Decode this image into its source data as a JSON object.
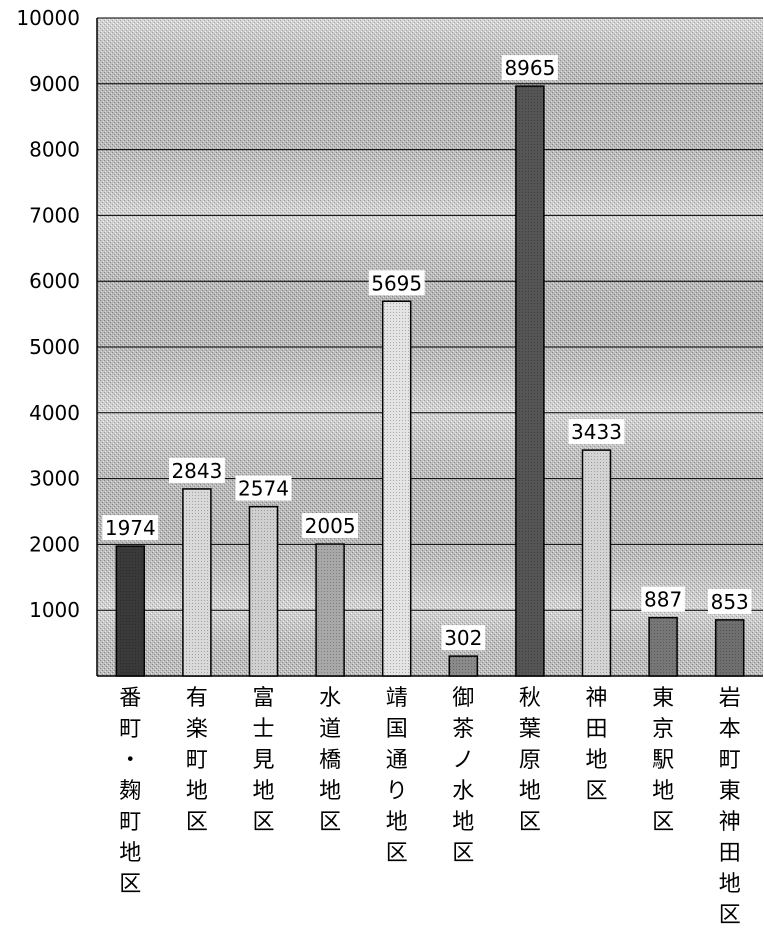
{
  "chart_data": {
    "type": "bar",
    "categories": [
      "番町・麹町地区",
      "有楽町地区",
      "富士見地区",
      "水道橋地区",
      "靖国通り地区",
      "御茶ノ水地区",
      "秋葉原地区",
      "神田地区",
      "東京駅地区",
      "岩本町東神田地区"
    ],
    "category_lines": [
      [
        "番",
        "町",
        "・",
        "麹",
        "町",
        "地",
        "区"
      ],
      [
        "有",
        "楽",
        "町",
        "地",
        "区"
      ],
      [
        "富",
        "士",
        "見",
        "地",
        "区"
      ],
      [
        "水",
        "道",
        "橋",
        "地",
        "区"
      ],
      [
        "靖",
        "国",
        "通",
        "り",
        "地",
        "区"
      ],
      [
        "御",
        "茶",
        "ノ",
        "水",
        "地",
        "区"
      ],
      [
        "秋",
        "葉",
        "原",
        "地",
        "区"
      ],
      [
        "神",
        "田",
        "地",
        "区"
      ],
      [
        "東",
        "京",
        "駅",
        "地",
        "区"
      ],
      [
        "岩",
        "本",
        "町",
        "東",
        "神",
        "田",
        "地",
        "区"
      ]
    ],
    "values": [
      1974,
      2843,
      2574,
      2005,
      5695,
      302,
      8965,
      3433,
      887,
      853
    ],
    "data_labels": [
      "1974",
      "2843",
      "2574",
      "2005",
      "5695",
      "302",
      "8965",
      "3433",
      "887",
      "853"
    ],
    "ylim": [
      0,
      10000
    ],
    "yticks": [
      1000,
      2000,
      3000,
      4000,
      5000,
      6000,
      7000,
      8000,
      9000,
      10000
    ],
    "ytick_labels": [
      "1000",
      "2000",
      "3000",
      "4000",
      "5000",
      "6000",
      "7000",
      "8000",
      "9000",
      "10000"
    ],
    "grid": true,
    "legend": "none",
    "bar_colors": [
      "#3a3a3a",
      "#d9d9d9",
      "#cfcfcf",
      "#a8a8a8",
      "#e4e4e4",
      "#8a8a8a",
      "#555555",
      "#d4d4d4",
      "#777777",
      "#6f6f6f"
    ]
  }
}
